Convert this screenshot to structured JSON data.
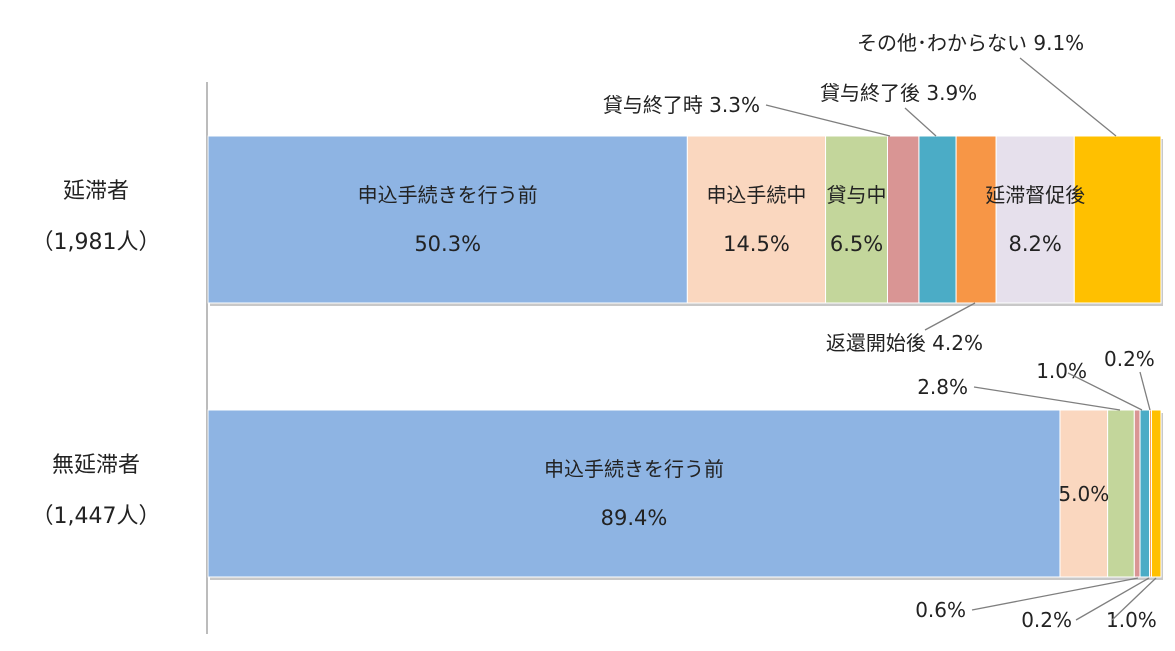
{
  "chart_data": {
    "type": "bar",
    "orientation": "horizontal",
    "stacked": true,
    "percent": true,
    "xlim": [
      0,
      100
    ],
    "categories": [
      {
        "label": "延滞者",
        "sublabel": "（1,981人）"
      },
      {
        "label": "無延滞者",
        "sublabel": "（1,447人）"
      }
    ],
    "series": [
      {
        "name": "申込手続きを行う前",
        "color": "#8EB4E3",
        "values": [
          50.3,
          89.4
        ]
      },
      {
        "name": "申込手続中",
        "color": "#FAD7BF",
        "values": [
          14.5,
          5.0
        ]
      },
      {
        "name": "貸与中",
        "color": "#C3D69B",
        "values": [
          6.5,
          2.8
        ]
      },
      {
        "name": "貸与終了時",
        "color": "#D99594",
        "values": [
          3.3,
          0.6
        ]
      },
      {
        "name": "貸与終了後",
        "color": "#4BACC6",
        "values": [
          3.9,
          1.0
        ]
      },
      {
        "name": "返還開始後",
        "color": "#F79646",
        "values": [
          4.2,
          0.2
        ]
      },
      {
        "name": "延滞督促後",
        "color": "#E6E0EC",
        "values": [
          8.2,
          0.0
        ]
      },
      {
        "name": "その他･わからない",
        "color": "#FFC000",
        "values": [
          9.1,
          1.0
        ]
      }
    ],
    "inner_labels": [
      {
        "row": 0,
        "series": 0,
        "name": "申込手続きを行う前",
        "value": "50.3%"
      },
      {
        "row": 0,
        "series": 1,
        "name": "申込手続中",
        "value": "14.5%"
      },
      {
        "row": 0,
        "series": 2,
        "name": "貸与中",
        "value": "6.5%"
      },
      {
        "row": 0,
        "series": 6,
        "name": "延滞督促後",
        "value": "8.2%"
      },
      {
        "row": 1,
        "series": 0,
        "name": "申込手続きを行う前",
        "value": "89.4%"
      },
      {
        "row": 1,
        "series": 1,
        "name": "",
        "value": "5.0%"
      }
    ],
    "callouts": [
      {
        "row": 0,
        "series": 3,
        "text": "貸与終了時 3.3%",
        "side": "above",
        "anchor": "end"
      },
      {
        "row": 0,
        "series": 4,
        "text": "貸与終了後 3.9%",
        "side": "above",
        "anchor": "start"
      },
      {
        "row": 0,
        "series": 7,
        "text": "その他･わからない 9.1%",
        "side": "above",
        "anchor": "start"
      },
      {
        "row": 0,
        "series": 5,
        "text": "返還開始後 4.2%",
        "side": "below",
        "anchor": "end"
      },
      {
        "row": 1,
        "series": 2,
        "text": "2.8%",
        "side": "above",
        "anchor": "end"
      },
      {
        "row": 1,
        "series": 4,
        "text": "1.0%",
        "side": "above",
        "anchor": "end"
      },
      {
        "row": 1,
        "series": 5,
        "text": "0.2%",
        "side": "above",
        "anchor": "start"
      },
      {
        "row": 1,
        "series": 3,
        "text": "0.6%",
        "side": "below",
        "anchor": "end"
      },
      {
        "row": 1,
        "series": 5,
        "text": "0.2%",
        "side": "below",
        "anchor": "end"
      },
      {
        "row": 1,
        "series": 7,
        "text": "1.0%",
        "side": "below",
        "anchor": "start"
      }
    ]
  }
}
